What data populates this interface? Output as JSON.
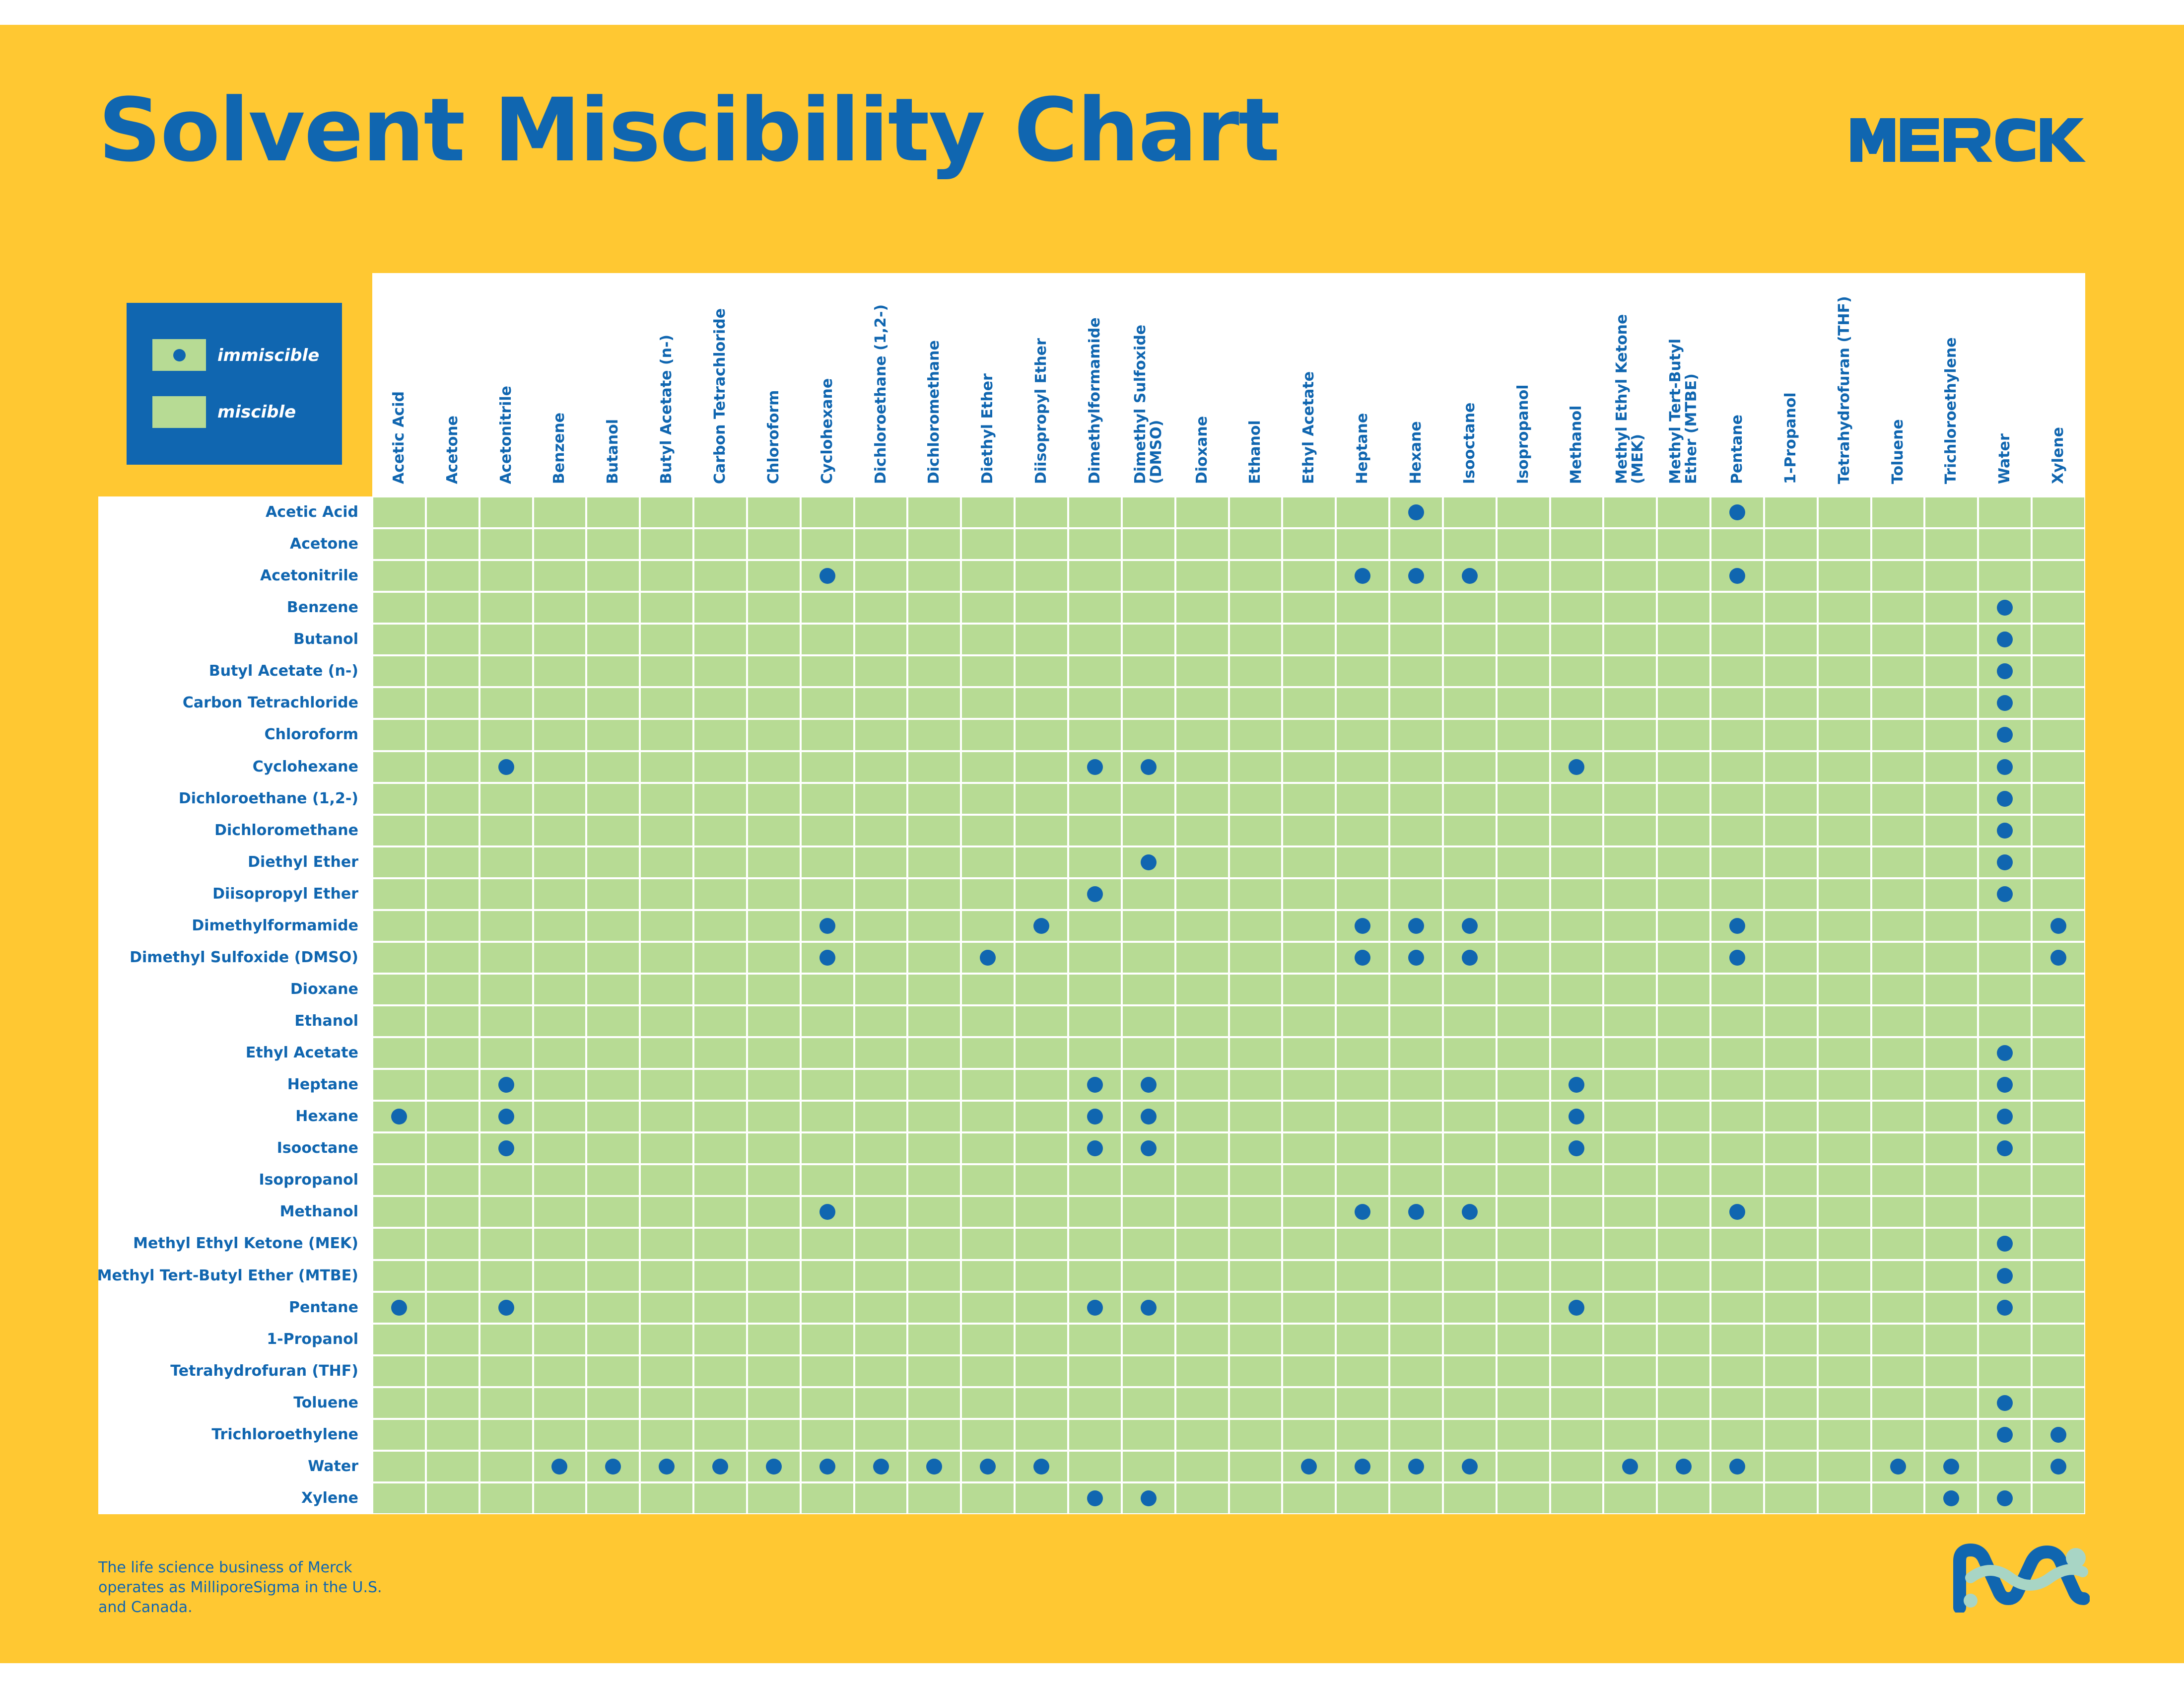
{
  "title": "Solvent Miscibility Chart",
  "brand": "MERCK",
  "colors": {
    "background": "#FFC832",
    "accent": "#1066B0",
    "miscible": "#B7DB94",
    "immiscible_dot": "#1066B0",
    "logo_light": "#A8D5C5"
  },
  "legend": {
    "immiscible": "immiscible",
    "miscible": "miscible"
  },
  "footer": {
    "note": "The life science business of Merck operates as MilliporeSigma in the U.S. and Canada."
  },
  "chart_data": {
    "type": "table",
    "title": "Solvent Miscibility Chart",
    "rows": [
      "Acetic Acid",
      "Acetone",
      "Acetonitrile",
      "Benzene",
      "Butanol",
      "Butyl Acetate (n-)",
      "Carbon Tetrachloride",
      "Chloroform",
      "Cyclohexane",
      "Dichloroethane (1,2-)",
      "Dichloromethane",
      "Diethyl Ether",
      "Diisopropyl Ether",
      "Dimethylformamide",
      "Dimethyl Sulfoxide (DMSO)",
      "Dioxane",
      "Ethanol",
      "Ethyl Acetate",
      "Heptane",
      "Hexane",
      "Isooctane",
      "Isopropanol",
      "Methanol",
      "Methyl Ethyl Ketone (MEK)",
      "Methyl Tert-Butyl Ether (MTBE)",
      "Pentane",
      "1-Propanol",
      "Tetrahydrofuran (THF)",
      "Toluene",
      "Trichloroethylene",
      "Water",
      "Xylene"
    ],
    "columns": [
      [
        "Acetic Acid"
      ],
      [
        "Acetone"
      ],
      [
        "Acetonitrile"
      ],
      [
        "Benzene"
      ],
      [
        "Butanol"
      ],
      [
        "Butyl Acetate (n-)"
      ],
      [
        "Carbon Tetrachloride"
      ],
      [
        "Chloroform"
      ],
      [
        "Cyclohexane"
      ],
      [
        "Dichloroethane (1,2-)"
      ],
      [
        "Dichloromethane"
      ],
      [
        "Diethyl Ether"
      ],
      [
        "Diisopropyl Ether"
      ],
      [
        "Dimethylformamide"
      ],
      [
        "Dimethyl Sulfoxide",
        "(DMSO)"
      ],
      [
        "Dioxane"
      ],
      [
        "Ethanol"
      ],
      [
        "Ethyl Acetate"
      ],
      [
        "Heptane"
      ],
      [
        "Hexane"
      ],
      [
        "Isooctane"
      ],
      [
        "Isopropanol"
      ],
      [
        "Methanol"
      ],
      [
        "Methyl Ethyl Ketone",
        "(MEK)"
      ],
      [
        "Methyl Tert-Butyl",
        "Ether (MTBE)"
      ],
      [
        "Pentane"
      ],
      [
        "1-Propanol"
      ],
      [
        "Tetrahydrofuran (THF)"
      ],
      [
        "Toluene"
      ],
      [
        "Trichloroethylene"
      ],
      [
        "Water"
      ],
      [
        "Xylene"
      ]
    ],
    "immiscible": {
      "Acetic Acid": [
        "Hexane",
        "Pentane"
      ],
      "Acetone": [],
      "Acetonitrile": [
        "Cyclohexane",
        "Heptane",
        "Hexane",
        "Isooctane",
        "Pentane"
      ],
      "Benzene": [
        "Water"
      ],
      "Butanol": [
        "Water"
      ],
      "Butyl Acetate (n-)": [
        "Water"
      ],
      "Carbon Tetrachloride": [
        "Water"
      ],
      "Chloroform": [
        "Water"
      ],
      "Cyclohexane": [
        "Acetonitrile",
        "Dimethylformamide",
        "Dimethyl Sulfoxide (DMSO)",
        "Methanol",
        "Water"
      ],
      "Dichloroethane (1,2-)": [
        "Water"
      ],
      "Dichloromethane": [
        "Water"
      ],
      "Diethyl Ether": [
        "Dimethyl Sulfoxide (DMSO)",
        "Water"
      ],
      "Diisopropyl Ether": [
        "Dimethylformamide",
        "Water"
      ],
      "Dimethylformamide": [
        "Cyclohexane",
        "Diisopropyl Ether",
        "Heptane",
        "Hexane",
        "Isooctane",
        "Pentane",
        "Xylene"
      ],
      "Dimethyl Sulfoxide (DMSO)": [
        "Cyclohexane",
        "Diethyl Ether",
        "Heptane",
        "Hexane",
        "Isooctane",
        "Pentane",
        "Xylene"
      ],
      "Dioxane": [],
      "Ethanol": [],
      "Ethyl Acetate": [
        "Water"
      ],
      "Heptane": [
        "Acetonitrile",
        "Dimethylformamide",
        "Dimethyl Sulfoxide (DMSO)",
        "Methanol",
        "Water"
      ],
      "Hexane": [
        "Acetic Acid",
        "Acetonitrile",
        "Dimethylformamide",
        "Dimethyl Sulfoxide (DMSO)",
        "Methanol",
        "Water"
      ],
      "Isooctane": [
        "Acetonitrile",
        "Dimethylformamide",
        "Dimethyl Sulfoxide (DMSO)",
        "Methanol",
        "Water"
      ],
      "Isopropanol": [],
      "Methanol": [
        "Cyclohexane",
        "Heptane",
        "Hexane",
        "Isooctane",
        "Pentane"
      ],
      "Methyl Ethyl Ketone (MEK)": [
        "Water"
      ],
      "Methyl Tert-Butyl Ether (MTBE)": [
        "Water"
      ],
      "Pentane": [
        "Acetic Acid",
        "Acetonitrile",
        "Dimethylformamide",
        "Dimethyl Sulfoxide (DMSO)",
        "Methanol",
        "Water"
      ],
      "1-Propanol": [],
      "Tetrahydrofuran (THF)": [],
      "Toluene": [
        "Water"
      ],
      "Trichloroethylene": [
        "Water",
        "Xylene"
      ],
      "Water": [
        "Benzene",
        "Butanol",
        "Butyl Acetate (n-)",
        "Carbon Tetrachloride",
        "Chloroform",
        "Cyclohexane",
        "Dichloroethane (1,2-)",
        "Dichloromethane",
        "Diethyl Ether",
        "Diisopropyl Ether",
        "Ethyl Acetate",
        "Heptane",
        "Hexane",
        "Isooctane",
        "Methyl Ethyl Ketone (MEK)",
        "Methyl Tert-Butyl Ether (MTBE)",
        "Pentane",
        "Toluene",
        "Trichloroethylene",
        "Xylene"
      ],
      "Xylene": [
        "Dimethylformamide",
        "Dimethyl Sulfoxide (DMSO)",
        "Trichloroethylene",
        "Water"
      ]
    }
  }
}
